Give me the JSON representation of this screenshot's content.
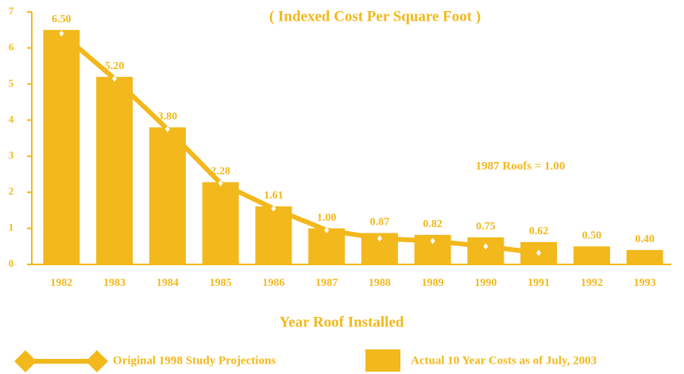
{
  "chart_data": {
    "type": "bar",
    "title": "( Indexed Cost Per Square Foot )",
    "annotation": "1987 Roofs = 1.00",
    "x_label": "Year Roof Installed",
    "categories": [
      "1982",
      "1983",
      "1984",
      "1985",
      "1986",
      "1987",
      "1988",
      "1989",
      "1990",
      "1991",
      "1992",
      "1993"
    ],
    "series": [
      {
        "name": "Actual 10 Year Costs as of July, 2003",
        "type": "bar",
        "color": "#f2b81c",
        "values": [
          6.5,
          5.2,
          3.8,
          2.28,
          1.61,
          1.0,
          0.87,
          0.82,
          0.75,
          0.62,
          0.5,
          0.4
        ],
        "value_labels": [
          "6.50",
          "5.20",
          "3.80",
          "2.28",
          "1.61",
          "1.00",
          "0.87",
          "0.82",
          "0.75",
          "0.62",
          "0.50",
          "0.40"
        ]
      },
      {
        "name": "Original 1998 Study Projections",
        "type": "line",
        "color": "#f2b81c",
        "values": [
          6.4,
          5.15,
          3.75,
          2.25,
          1.55,
          0.95,
          0.72,
          0.65,
          0.5,
          0.32,
          null,
          null
        ]
      }
    ],
    "ylim": [
      0,
      7
    ],
    "yticks": [
      0,
      1,
      2,
      3,
      4,
      5,
      6,
      7
    ],
    "legend": "bottom"
  }
}
